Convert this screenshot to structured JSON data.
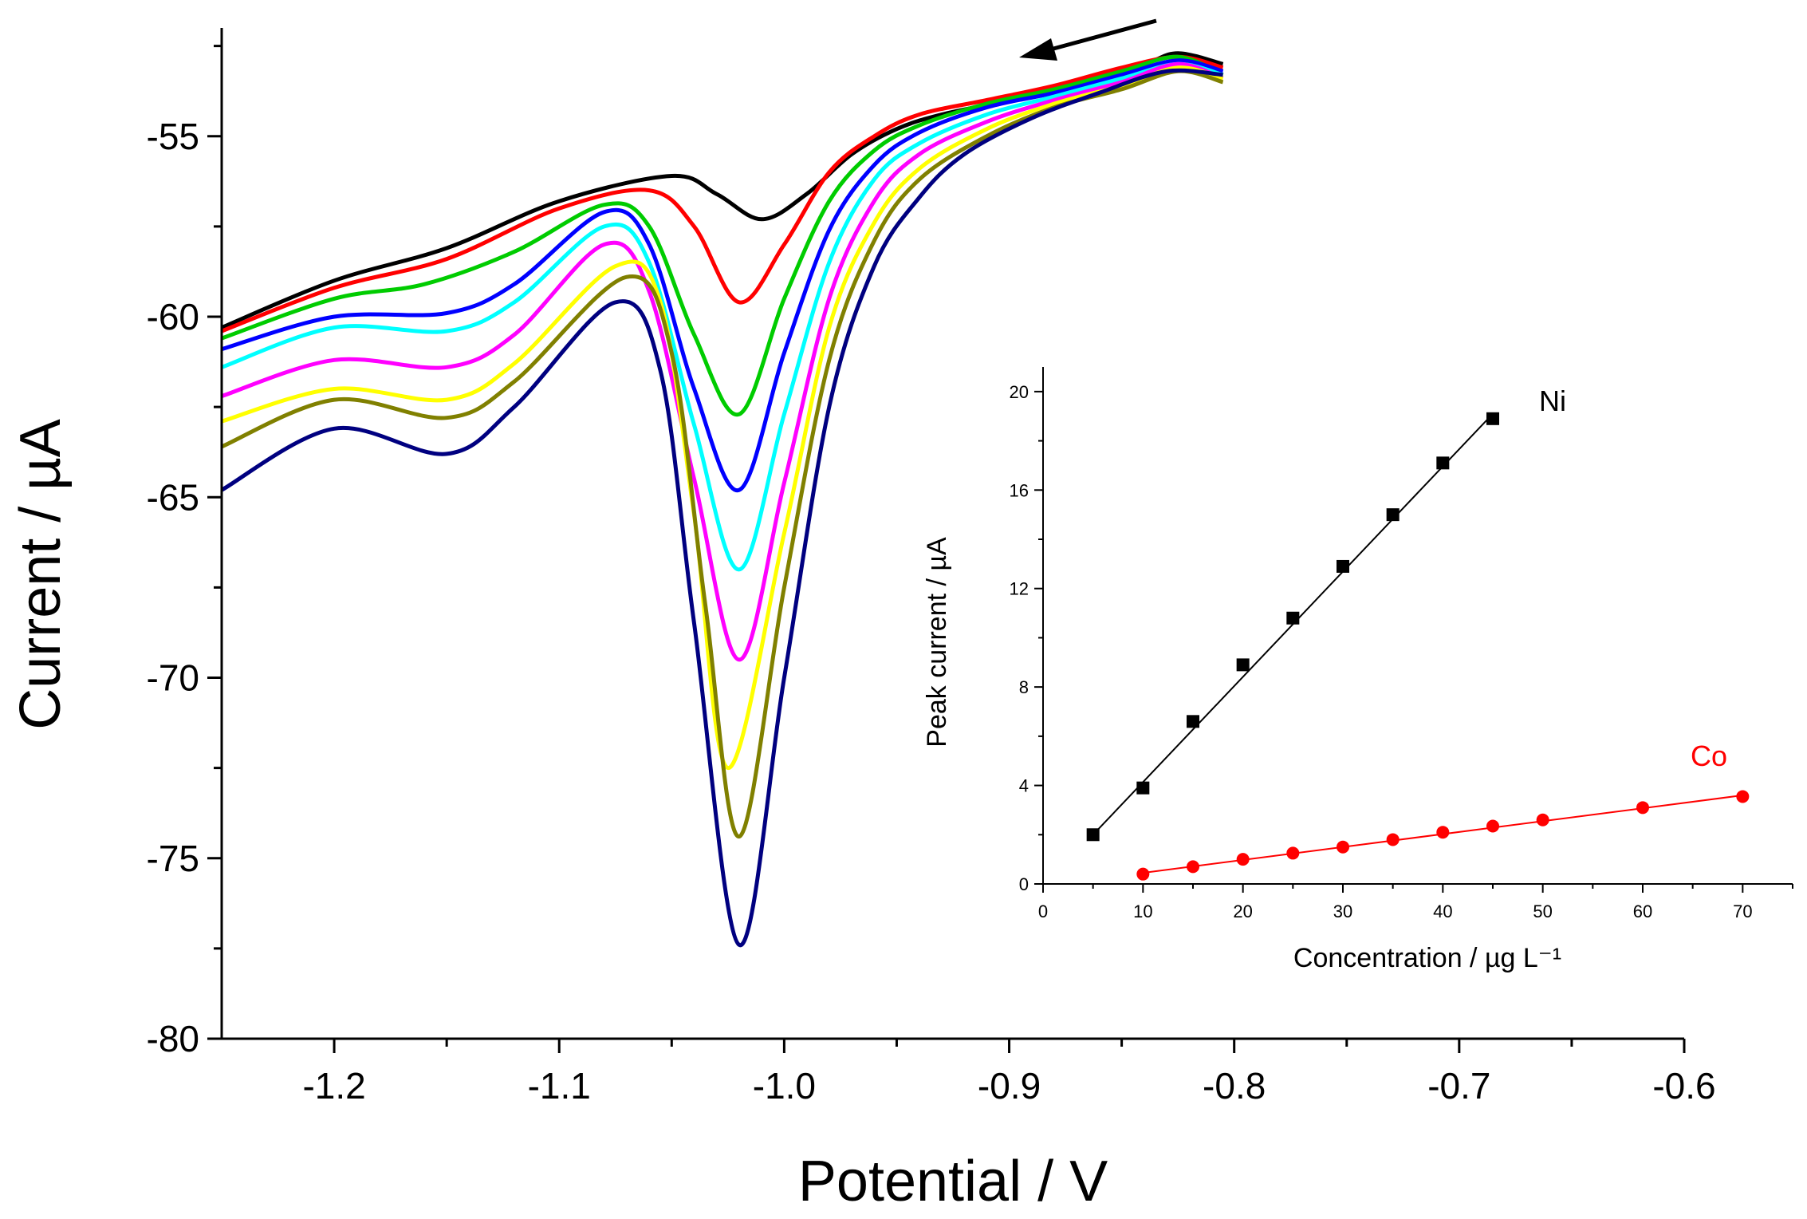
{
  "chart_data": [
    {
      "type": "line",
      "xlabel": "Potential / V",
      "ylabel": "Current / µA",
      "xlim": [
        -1.25,
        -0.6
      ],
      "ylim": [
        -80,
        -52
      ],
      "xticks": [
        -1.2,
        -1.1,
        -1.0,
        -0.9,
        -0.8,
        -0.7,
        -0.6
      ],
      "xtick_labels": [
        "-1.2",
        "-1.1",
        "-1.0",
        "-0.9",
        "-0.8",
        "-0.7",
        "-0.6"
      ],
      "yticks": [
        -80,
        -75,
        -70,
        -65,
        -60,
        -55
      ],
      "ytick_labels": [
        "-80",
        "-75",
        "-70",
        "-65",
        "-60",
        "-55"
      ],
      "grid": false,
      "annotation": "arrow indicating scan direction (toward negative potential)",
      "series": [
        {
          "color": "#000000",
          "x": [
            -1.25,
            -1.2,
            -1.15,
            -1.1,
            -1.05,
            -1.03,
            -1.01,
            -0.99,
            -0.97,
            -0.95,
            -0.93,
            -0.9,
            -0.87,
            -0.84,
            -0.825,
            -0.805
          ],
          "y": [
            -60.3,
            -59.0,
            -58.1,
            -56.8,
            -56.1,
            -56.6,
            -57.3,
            -56.6,
            -55.5,
            -54.8,
            -54.4,
            -54.0,
            -53.5,
            -53.0,
            -52.7,
            -53.0
          ]
        },
        {
          "color": "#ff0000",
          "x": [
            -1.25,
            -1.2,
            -1.15,
            -1.1,
            -1.06,
            -1.04,
            -1.02,
            -1.0,
            -0.98,
            -0.96,
            -0.94,
            -0.91,
            -0.88,
            -0.85,
            -0.825,
            -0.805
          ],
          "y": [
            -60.4,
            -59.2,
            -58.4,
            -57.0,
            -56.5,
            -57.5,
            -59.6,
            -58.0,
            -56.0,
            -55.0,
            -54.4,
            -54.0,
            -53.6,
            -53.1,
            -52.8,
            -53.1
          ]
        },
        {
          "color": "#00cc00",
          "x": [
            -1.25,
            -1.2,
            -1.16,
            -1.12,
            -1.08,
            -1.06,
            -1.04,
            -1.02,
            -1.0,
            -0.98,
            -0.96,
            -0.94,
            -0.91,
            -0.88,
            -0.85,
            -0.825,
            -0.805
          ],
          "y": [
            -60.6,
            -59.5,
            -59.1,
            -58.2,
            -56.9,
            -57.5,
            -60.5,
            -62.7,
            -59.5,
            -56.8,
            -55.4,
            -54.7,
            -54.1,
            -53.7,
            -53.2,
            -52.8,
            -53.3
          ]
        },
        {
          "color": "#0000ff",
          "x": [
            -1.25,
            -1.2,
            -1.15,
            -1.12,
            -1.08,
            -1.06,
            -1.04,
            -1.02,
            -1.0,
            -0.98,
            -0.96,
            -0.94,
            -0.91,
            -0.88,
            -0.85,
            -0.825,
            -0.805
          ],
          "y": [
            -60.9,
            -60.0,
            -59.9,
            -59.1,
            -57.1,
            -58.0,
            -62.0,
            -64.8,
            -61.0,
            -57.6,
            -55.8,
            -54.9,
            -54.2,
            -53.8,
            -53.3,
            -52.9,
            -53.2
          ]
        },
        {
          "color": "#00ffff",
          "x": [
            -1.25,
            -1.2,
            -1.15,
            -1.12,
            -1.08,
            -1.06,
            -1.04,
            -1.02,
            -1.0,
            -0.98,
            -0.96,
            -0.94,
            -0.91,
            -0.88,
            -0.85,
            -0.825,
            -0.805
          ],
          "y": [
            -61.4,
            -60.3,
            -60.4,
            -59.6,
            -57.5,
            -58.5,
            -63.0,
            -67.0,
            -62.7,
            -58.5,
            -56.2,
            -55.2,
            -54.4,
            -53.9,
            -53.4,
            -53.0,
            -53.3
          ]
        },
        {
          "color": "#ff00ff",
          "x": [
            -1.25,
            -1.2,
            -1.15,
            -1.12,
            -1.08,
            -1.06,
            -1.04,
            -1.02,
            -1.0,
            -0.98,
            -0.96,
            -0.94,
            -0.91,
            -0.88,
            -0.85,
            -0.825,
            -0.805
          ],
          "y": [
            -62.2,
            -61.2,
            -61.4,
            -60.5,
            -58.0,
            -59.3,
            -64.5,
            -69.5,
            -64.6,
            -59.5,
            -56.8,
            -55.5,
            -54.6,
            -54.0,
            -53.5,
            -53.0,
            -53.4
          ]
        },
        {
          "color": "#ffff00",
          "x": [
            -1.25,
            -1.2,
            -1.15,
            -1.12,
            -1.075,
            -1.055,
            -1.04,
            -1.025,
            -1.0,
            -0.98,
            -0.96,
            -0.94,
            -0.91,
            -0.88,
            -0.85,
            -0.825,
            -0.805
          ],
          "y": [
            -62.9,
            -62.0,
            -62.3,
            -61.3,
            -58.6,
            -59.6,
            -65.5,
            -72.5,
            -66.0,
            -60.3,
            -57.4,
            -55.9,
            -54.8,
            -54.1,
            -53.6,
            -53.1,
            -53.4
          ]
        },
        {
          "color": "#808000",
          "x": [
            -1.25,
            -1.2,
            -1.15,
            -1.12,
            -1.07,
            -1.05,
            -1.035,
            -1.02,
            -1.0,
            -0.98,
            -0.96,
            -0.94,
            -0.91,
            -0.88,
            -0.85,
            -0.825,
            -0.805
          ],
          "y": [
            -63.6,
            -62.3,
            -62.8,
            -61.8,
            -58.9,
            -61.0,
            -68.0,
            -74.4,
            -67.5,
            -61.2,
            -57.9,
            -56.2,
            -55.0,
            -54.2,
            -53.7,
            -53.2,
            -53.5
          ]
        },
        {
          "color": "#000080",
          "x": [
            -1.25,
            -1.2,
            -1.15,
            -1.12,
            -1.075,
            -1.055,
            -1.04,
            -1.02,
            -1.0,
            -0.98,
            -0.96,
            -0.94,
            -0.92,
            -0.89,
            -0.86,
            -0.83,
            -0.805
          ],
          "y": [
            -64.8,
            -63.1,
            -63.8,
            -62.5,
            -59.6,
            -61.5,
            -68.5,
            -77.4,
            -70.0,
            -62.5,
            -58.6,
            -56.7,
            -55.5,
            -54.5,
            -53.8,
            -53.2,
            -53.3
          ]
        }
      ]
    },
    {
      "type": "scatter",
      "xlabel": "Concentration / µg L⁻¹",
      "ylabel": "Peak current / µA",
      "xlim": [
        0,
        75
      ],
      "ylim": [
        0,
        21
      ],
      "xticks": [
        0,
        10,
        20,
        30,
        40,
        50,
        60,
        70
      ],
      "xtick_labels": [
        "0",
        "10",
        "20",
        "30",
        "40",
        "50",
        "60",
        "70"
      ],
      "yticks": [
        0,
        4,
        8,
        12,
        16,
        20
      ],
      "ytick_labels": [
        "0",
        "4",
        "8",
        "12",
        "16",
        "20"
      ],
      "grid": false,
      "series": [
        {
          "name": "Ni",
          "color": "#000000",
          "marker": "square",
          "x": [
            5,
            10,
            15,
            20,
            25,
            30,
            35,
            40,
            45
          ],
          "y": [
            2.0,
            3.9,
            6.6,
            8.9,
            10.8,
            12.9,
            15.0,
            17.1,
            18.9
          ],
          "fit": {
            "x": [
              5,
              45
            ],
            "y": [
              2.0,
              19.1
            ]
          }
        },
        {
          "name": "Co",
          "color": "#ff0000",
          "marker": "circle",
          "x": [
            10,
            15,
            20,
            25,
            30,
            35,
            40,
            45,
            50,
            60,
            70
          ],
          "y": [
            0.4,
            0.7,
            1.0,
            1.25,
            1.5,
            1.8,
            2.1,
            2.35,
            2.6,
            3.1,
            3.55
          ],
          "fit": {
            "x": [
              10,
              70
            ],
            "y": [
              0.45,
              3.6
            ]
          }
        }
      ]
    }
  ]
}
